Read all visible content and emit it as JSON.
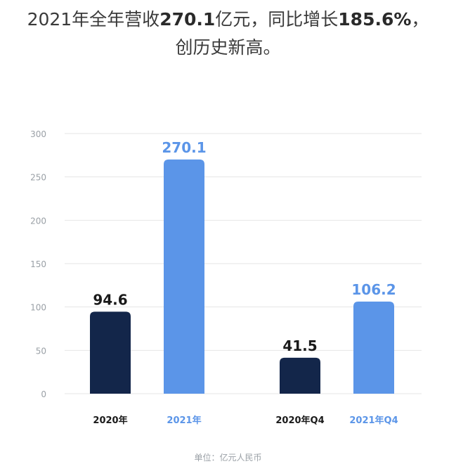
{
  "headline": {
    "seg1": "2021年全年营收",
    "seg2": "270.1",
    "seg3": "亿元，同比增长",
    "seg4": "185.6%",
    "seg5": "，",
    "line2": "创历史新高。"
  },
  "unit_note": "单位：亿元人民币",
  "colors": {
    "dark": "#13264a",
    "light": "#5b95e8",
    "grid": "#e6e6e6",
    "tick": "#9aa0a6"
  },
  "chart_data": {
    "type": "bar",
    "categories": [
      "2020年",
      "2021年",
      "2020年Q4",
      "2021年Q4"
    ],
    "values": [
      94.6,
      270.1,
      41.5,
      106.2
    ],
    "value_labels": [
      "94.6",
      "270.1",
      "41.5",
      "106.2"
    ],
    "bar_colors": [
      "dark",
      "light",
      "dark",
      "light"
    ],
    "yticks": [
      0,
      50,
      100,
      150,
      200,
      250,
      300
    ],
    "ylim": [
      0,
      300
    ],
    "grid": true
  }
}
